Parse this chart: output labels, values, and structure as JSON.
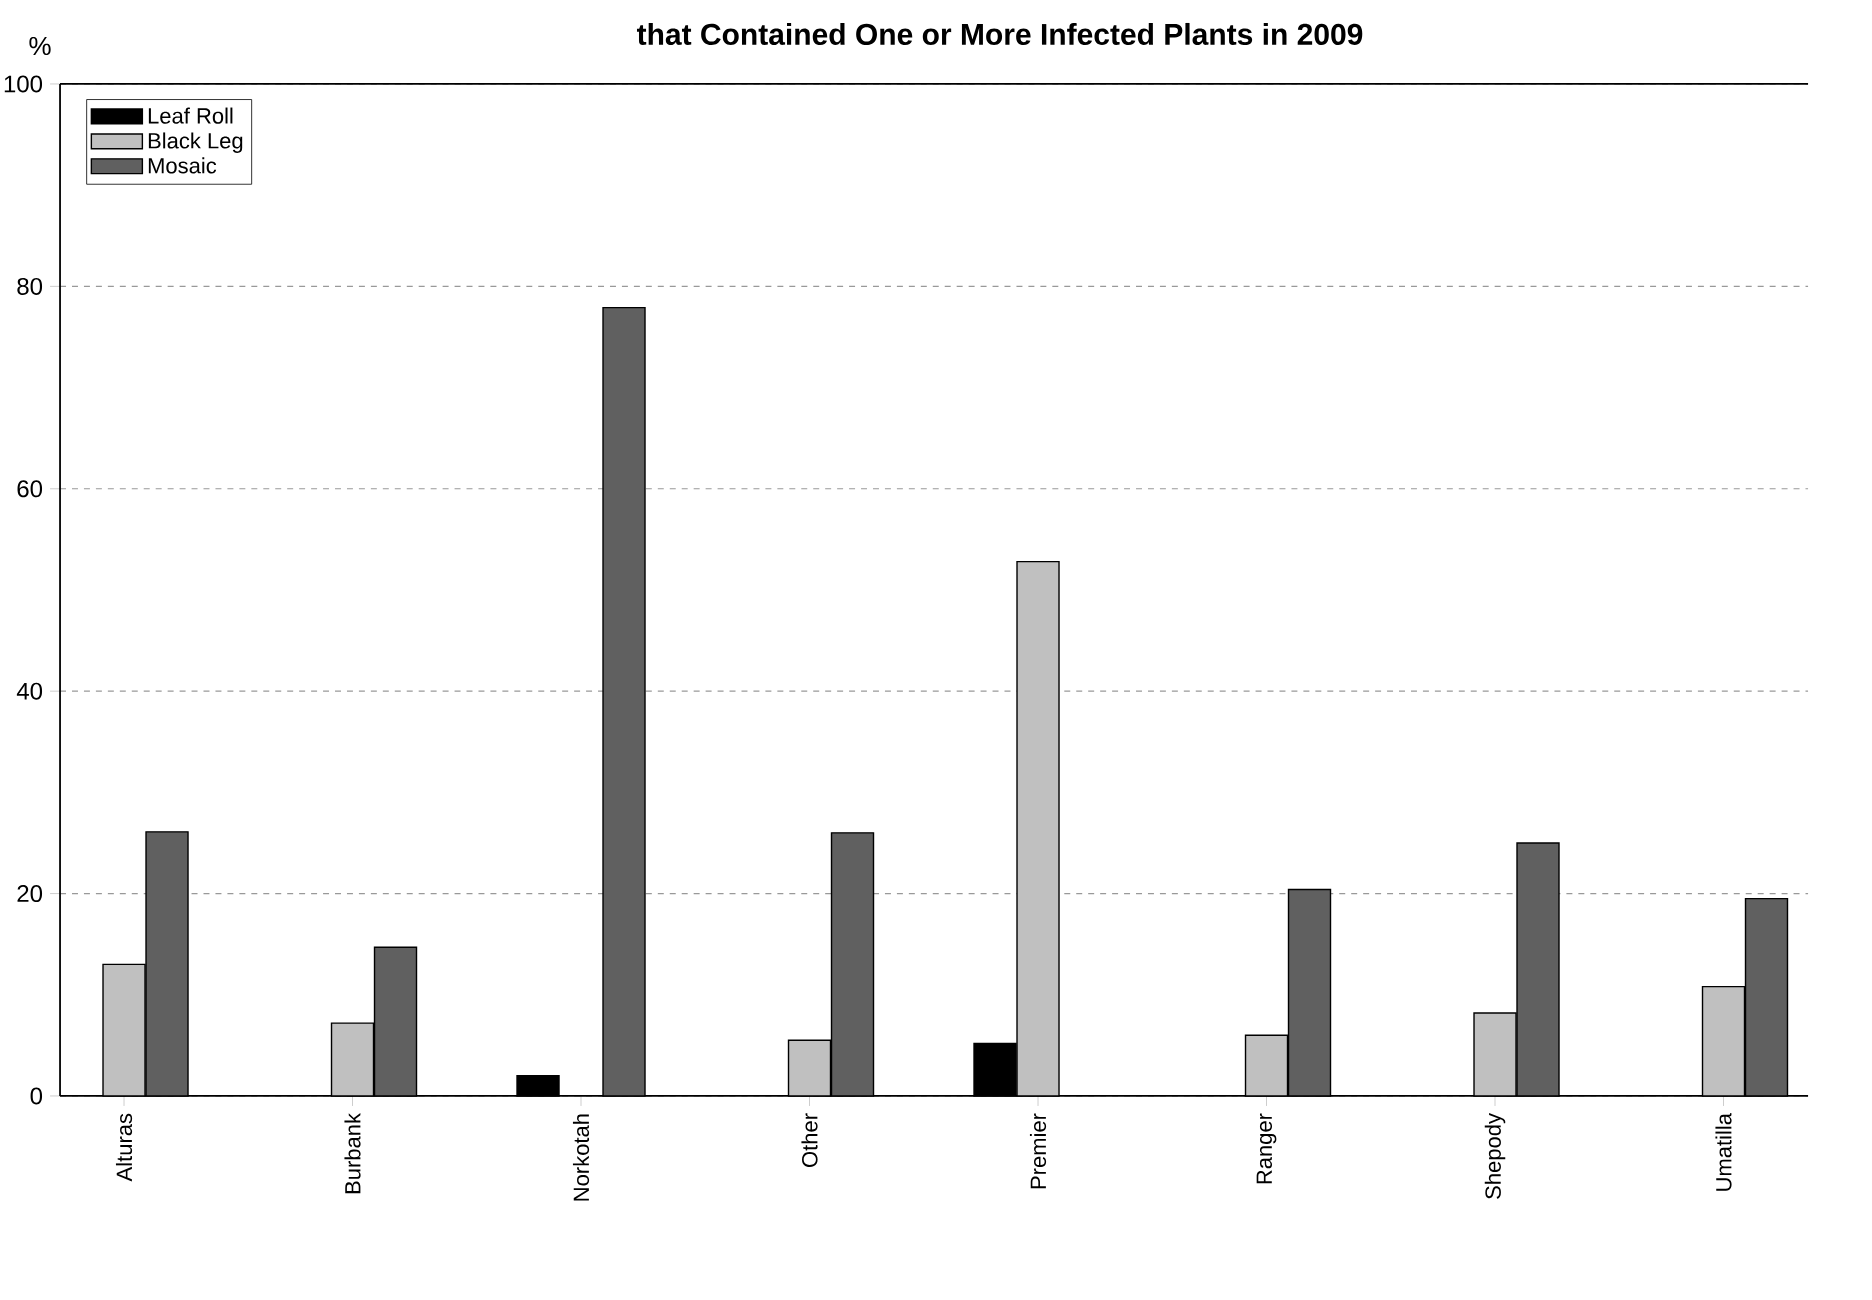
{
  "chart_data": {
    "type": "bar",
    "title": "that Contained One or More Infected Plants in 2009",
    "ylabel": "%",
    "categories": [
      "Alturas",
      "Burbank",
      "Norkotah",
      "Other",
      "Premier",
      "Ranger",
      "Shepody",
      "Umatilla"
    ],
    "series": [
      {
        "name": "Leaf Roll",
        "color": "#000000",
        "values": [
          null,
          null,
          2.0,
          null,
          5.2,
          null,
          null,
          null
        ]
      },
      {
        "name": "Black Leg",
        "color": "#c0c0c0",
        "values": [
          13.0,
          7.2,
          null,
          5.5,
          52.8,
          6.0,
          8.2,
          10.8
        ]
      },
      {
        "name": "Mosaic",
        "color": "#606060",
        "values": [
          26.1,
          14.7,
          77.9,
          26.0,
          null,
          20.4,
          25.0,
          19.5
        ]
      }
    ],
    "ylim": [
      0,
      100
    ],
    "yticks": [
      0,
      20,
      40,
      60,
      80,
      100
    ],
    "grid": "y",
    "legend": "top left"
  }
}
